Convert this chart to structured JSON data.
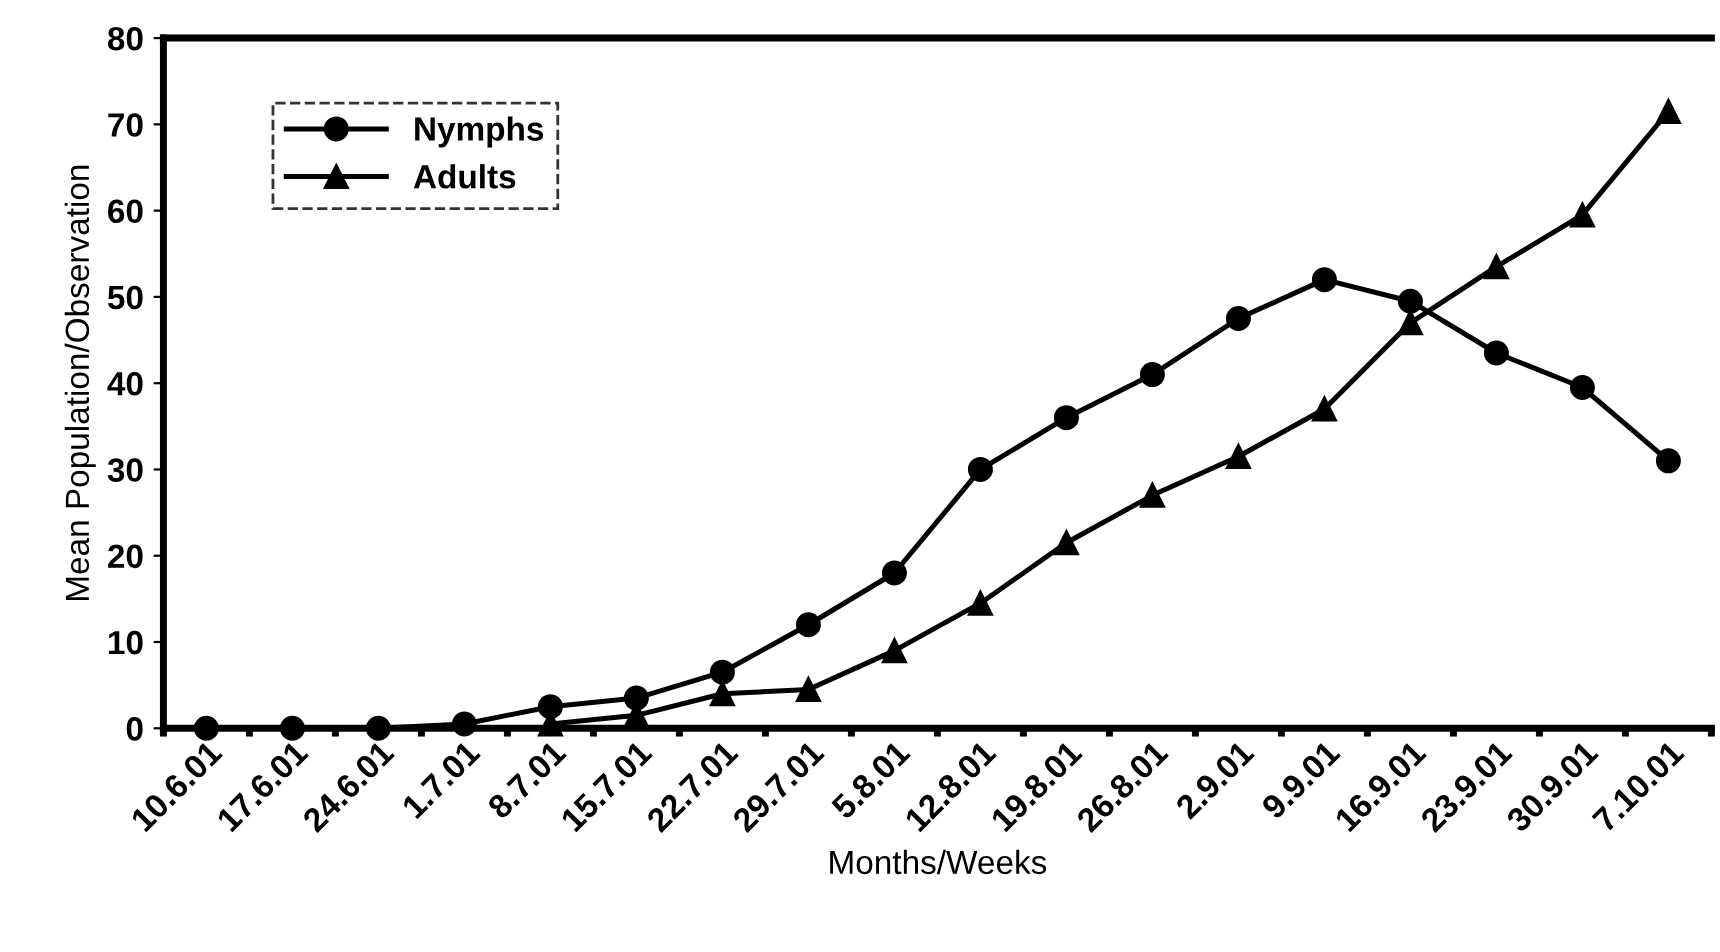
{
  "chart_data": {
    "type": "line",
    "xlabel": "Months/Weeks",
    "ylabel": "Mean Population/Observation",
    "categories": [
      "10.6.01",
      "17.6.01",
      "24.6.01",
      "1.7.01",
      "8.7.01",
      "15.7.01",
      "22.7.01",
      "29.7.01",
      "5.8.01",
      "12.8.01",
      "19.8.01",
      "26.8.01",
      "2.9.01",
      "9.9.01",
      "16.9.01",
      "23.9.01",
      "30.9.01",
      "7.10.01"
    ],
    "series": [
      {
        "name": "Nymphs",
        "color": "#000000",
        "marker": "circle",
        "values": [
          0,
          0,
          0,
          0.5,
          2.5,
          3.5,
          6.5,
          12,
          18,
          30,
          36,
          41,
          47.5,
          52,
          49.5,
          43.5,
          39.5,
          31
        ]
      },
      {
        "name": "Adults",
        "color": "#000000",
        "marker": "triangle",
        "values": [
          null,
          null,
          null,
          null,
          0.5,
          1.5,
          4,
          4.5,
          9,
          14.5,
          21.5,
          27,
          31.5,
          37,
          47,
          53.5,
          59.5,
          71.5
        ]
      }
    ],
    "ylim": [
      0,
      80
    ],
    "yticks": [
      0,
      10,
      20,
      30,
      40,
      50,
      60,
      70,
      80
    ],
    "grid": false,
    "legend": "top left",
    "line_style": "solid"
  }
}
